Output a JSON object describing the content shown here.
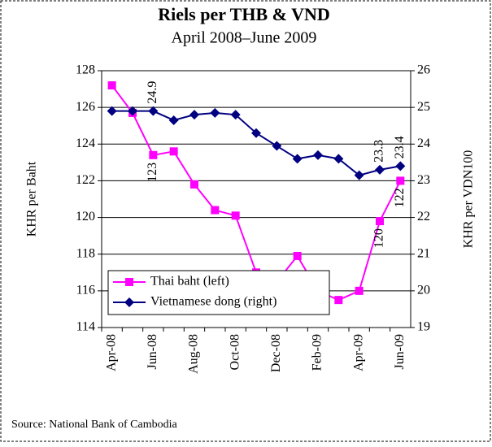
{
  "chart_data": {
    "type": "line",
    "title": "Riels per THB & VND",
    "subtitle": "April 2008–June 2009",
    "y_label": "KHR per Baht",
    "y2_label": "KHR per VDN100",
    "source": "Source: National Bank of Cambodia",
    "categories": [
      "Apr-08",
      null,
      "Jun-08",
      null,
      "Aug-08",
      null,
      "Oct-08",
      null,
      "Dec-08",
      null,
      "Feb-09",
      null,
      "Apr-09",
      null,
      "Jun-09"
    ],
    "series": [
      {
        "name": "Thai baht (left)",
        "color": "#ff00ff",
        "marker": "square",
        "values": [
          127.2,
          125.7,
          123.4,
          123.6,
          121.8,
          120.4,
          120.1,
          117.0,
          116.5,
          117.9,
          116.0,
          115.5,
          116.0,
          119.8,
          122.0
        ],
        "value_labels": [
          null,
          null,
          "123",
          null,
          null,
          null,
          null,
          null,
          null,
          null,
          null,
          null,
          null,
          "120",
          "122"
        ]
      },
      {
        "name": "Vietnamese dong (right)",
        "color": "#000080",
        "marker": "diamond",
        "axis": "y2",
        "values": [
          24.9,
          24.9,
          24.9,
          24.65,
          24.8,
          24.85,
          24.8,
          24.3,
          23.95,
          23.6,
          23.7,
          23.6,
          23.15,
          23.3,
          23.4
        ],
        "value_labels": [
          null,
          null,
          "24.9",
          null,
          null,
          null,
          null,
          null,
          null,
          null,
          null,
          null,
          null,
          "23.3",
          "23.4"
        ]
      }
    ],
    "ylim": [
      114,
      128
    ],
    "yticks": [
      114,
      116,
      118,
      120,
      122,
      124,
      126,
      128
    ],
    "y2lim": [
      19,
      26
    ],
    "y2ticks": [
      19,
      20,
      21,
      22,
      23,
      24,
      25,
      26
    ],
    "grid": true,
    "legend": "lower left"
  }
}
